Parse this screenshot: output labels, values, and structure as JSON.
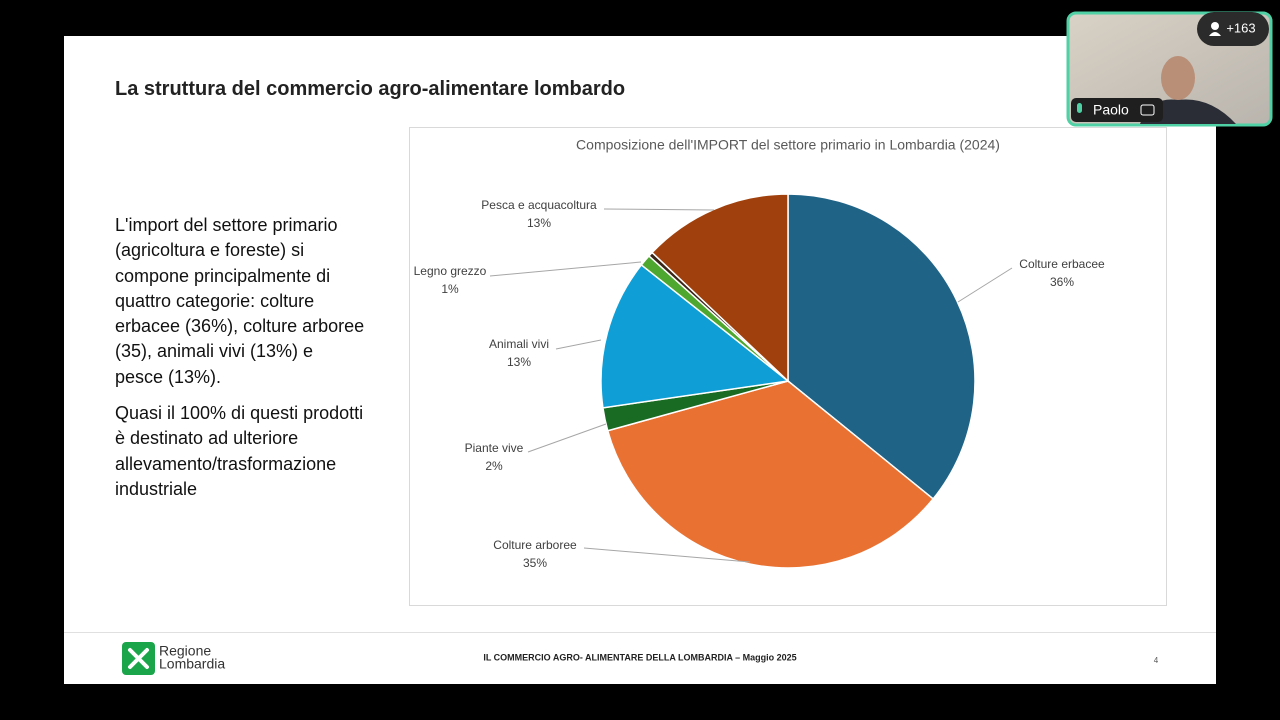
{
  "slide": {
    "title": "La struttura del commercio agro-alimentare lombardo",
    "body": [
      "L'import del settore primario (agricoltura e foreste) si compone principalmente di quattro categorie: colture erbacee (36%), colture arboree (35), animali vivi (13%) e pesce (13%).",
      "Quasi il 100% di questi prodotti è destinato ad ulteriore allevamento/trasformazione industriale"
    ],
    "footer": {
      "logo": [
        "Regione",
        "Lombardia"
      ],
      "text": "IL COMMERCIO AGRO- ALIMENTARE DELLA LOMBARDIA – Maggio 2025",
      "page": "4"
    }
  },
  "call": {
    "participant": "Paolo",
    "others": "+163"
  },
  "chart_data": {
    "type": "pie",
    "title": "Composizione dell'IMPORT del settore primario in Lombardia (2024)",
    "categories": [
      "Colture erbacee",
      "Colture arboree",
      "Piante vive",
      "Animali vivi",
      "Legno grezzo",
      null,
      "Pesca e acquacoltura"
    ],
    "values": [
      36,
      35,
      2,
      13,
      1,
      0.4,
      13
    ],
    "value_labels": [
      "36%",
      "35%",
      "2%",
      "13%",
      "1%",
      null,
      "13%"
    ],
    "colors": [
      "#1f6387",
      "#e97132",
      "#196b24",
      "#0f9ed5",
      "#4ea72e",
      "#3a2618",
      "#a0400c"
    ]
  }
}
